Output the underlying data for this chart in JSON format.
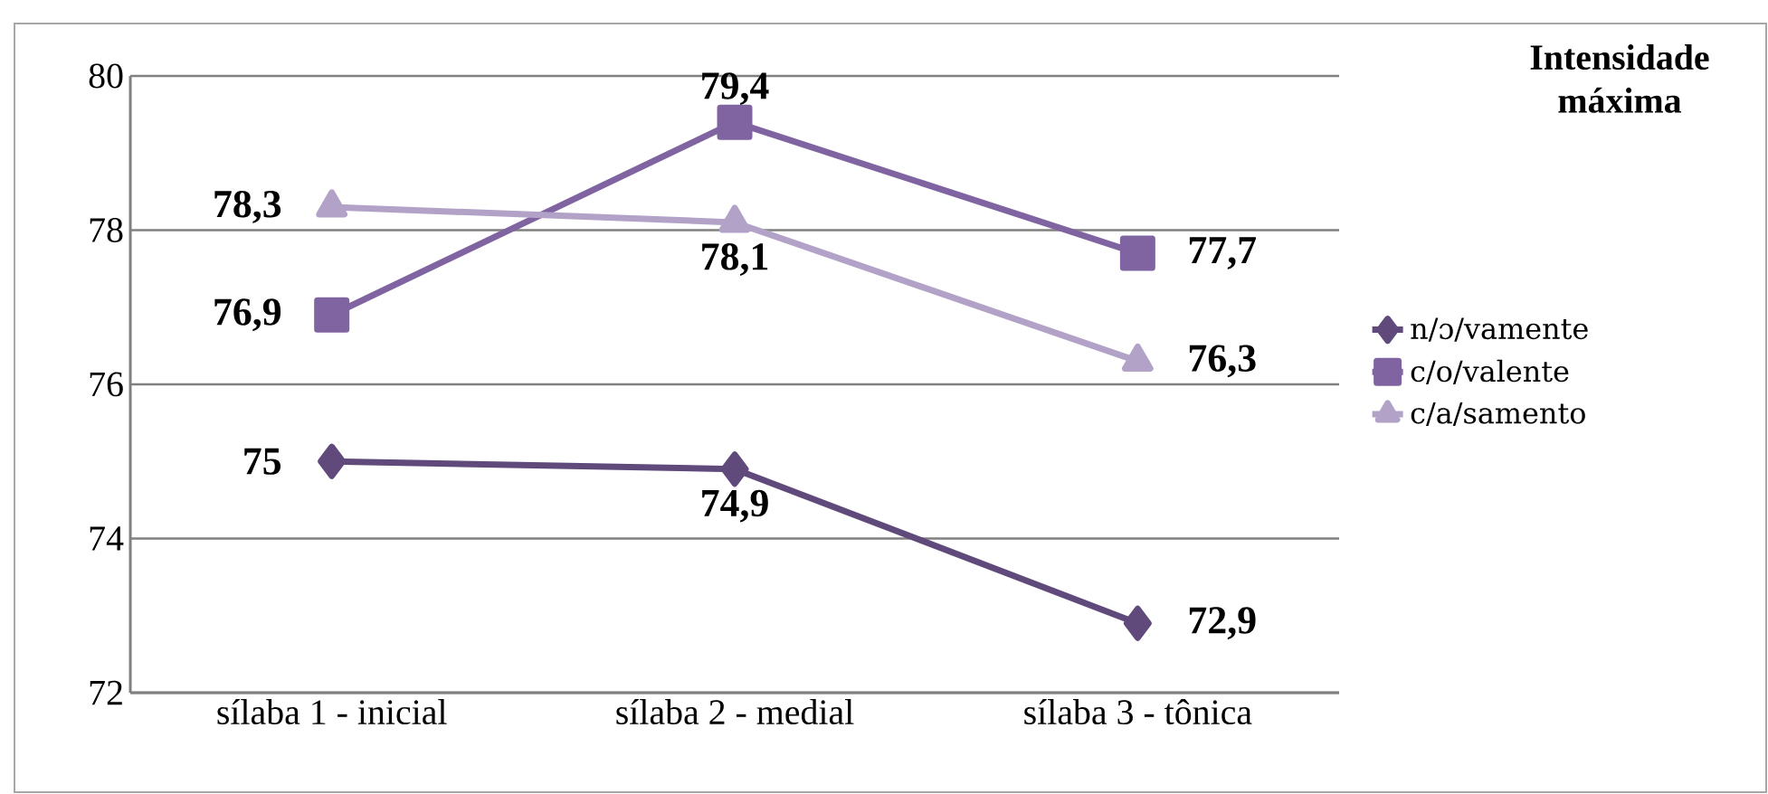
{
  "chart_data": {
    "type": "line",
    "legend_title": "**Intensidade máxima**",
    "categories": [
      "sílaba 1 - inicial",
      "sílaba 2 - medial",
      "sílaba 3 - tônica"
    ],
    "series": [
      {
        "name": "n/ɔ/vamente",
        "color": "#604a7b",
        "marker": "diamond",
        "values": [
          75,
          74.9,
          72.9
        ],
        "value_labels": [
          "75",
          "74,9",
          "72,9"
        ]
      },
      {
        "name": "c/o/valente",
        "color": "#8064a2",
        "marker": "square",
        "values": [
          76.9,
          79.4,
          77.7
        ],
        "value_labels": [
          "76,9",
          "79,4",
          "77,7"
        ]
      },
      {
        "name": "c/a/samento",
        "color": "#b3a2c7",
        "marker": "triangle",
        "values": [
          78.3,
          78.1,
          76.3
        ],
        "value_labels": [
          "78,3",
          "78,1",
          "76,3"
        ]
      }
    ],
    "ylim": [
      72,
      80
    ],
    "yticks": [
      72,
      74,
      76,
      78,
      80
    ],
    "grid": "y",
    "legend": "right",
    "line_style": "solid"
  }
}
